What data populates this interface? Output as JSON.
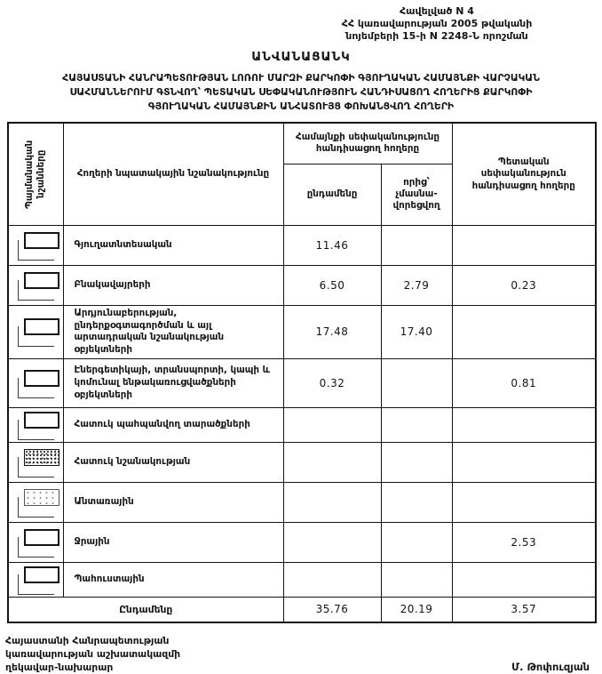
{
  "header": {
    "annex": "Հավելված N 4\nՀՀ կառավարության 2005 թվականի\nնոյեմբերի 15-ի N 2248-Ն որոշման",
    "title": "ԱՆՎԱՆԱՑԱՆԿ",
    "subtitle": "ՀԱՅԱՍՏԱՆԻ ՀԱՆՐԱՊԵՏՈՒԹՅԱՆ ԼՈՌՈՒ ՄԱՐԶԻ ՔԱՐԿՈՓԻ ԳՅՈՒՂԱԿԱՆ ՀԱՄԱՅՆՔԻ ՎԱՐՉԱԿԱՆ\nՍԱՀՄԱՆՆԵՐՈՒՄ ԳՏՆՎՈՂ՝ ՊԵՏԱԿԱՆ ՍԵՓԱԿԱՆՈՒԹՅՈՒՆ ՀԱՆԴԻՍԱՑՈՂ ՀՈՂԵՐԻՑ ՔԱՐԿՈՓԻ\nԳՅՈՒՂԱԿԱՆ ՀԱՄԱՅՆՔԻՆ ԱՆՀԱՏՈՒՅՑ ՓՈԽԱՆՑՎՈՂ ՀՈՂԵՐԻ"
  },
  "table": {
    "col_symbols": "Պայմանական նշանները",
    "col_purpose": "Հողերի նպատակային նշանակությունը",
    "col_community": "Համայնքի սեփականությունը\nհանդիսացող հողերը",
    "col_community_total": "ընդամենը",
    "col_community_nonpriv": "որից՝\nչմասնա-\nվորեցվող",
    "col_state": "Պետական\nսեփականություն\nհանդիսացող հողերը",
    "rows": [
      {
        "symbol": "plain",
        "purpose": "Գյուղատնտեսական",
        "total": "11.46",
        "nonpriv": "",
        "state": ""
      },
      {
        "symbol": "plain",
        "purpose": "Բնակավայրերի",
        "total": "6.50",
        "nonpriv": "2.79",
        "state": "0.23"
      },
      {
        "symbol": "plain",
        "purpose": "Արդյունաբերության, ընդերքօգտագործման և այլ արտադրական նշանակության օբյեկտների",
        "total": "17.48",
        "nonpriv": "17.40",
        "state": ""
      },
      {
        "symbol": "plain",
        "purpose": "Էներգետիկայի, տրանսպորտի, կապի և կոմունալ ենթակառուցվածքների օբյեկտների",
        "total": "0.32",
        "nonpriv": "",
        "state": "0.81"
      },
      {
        "symbol": "plain",
        "purpose": "Հատուկ պահպանվող տարածքների",
        "total": "",
        "nonpriv": "",
        "state": ""
      },
      {
        "symbol": "hatched",
        "purpose": "Հատուկ նշանակության",
        "total": "",
        "nonpriv": "",
        "state": ""
      },
      {
        "symbol": "dotted",
        "purpose": "Անտառային",
        "total": "",
        "nonpriv": "",
        "state": ""
      },
      {
        "symbol": "plain",
        "purpose": "Ջրային",
        "total": "",
        "nonpriv": "",
        "state": "2.53"
      },
      {
        "symbol": "plain",
        "purpose": "Պահուստային",
        "total": "",
        "nonpriv": "",
        "state": ""
      }
    ],
    "total_row": {
      "label": "Ընդամենը",
      "total": "35.76",
      "nonpriv": "20.19",
      "state": "3.57"
    }
  },
  "footer": {
    "left": "Հայաստանի Հանրապետության\nկառավարության աշխատակազմի\nղեկավար-նախարար",
    "signer": "Մ. Թոփուզյան"
  }
}
